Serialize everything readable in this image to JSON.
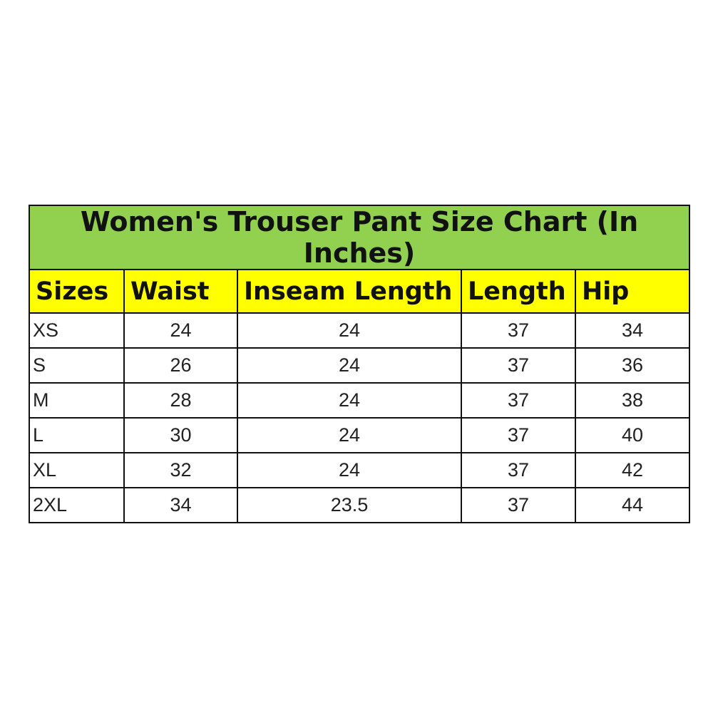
{
  "title": "Women's Trouser Pant Size Chart (In Inches)",
  "colors": {
    "title_bg": "#92d050",
    "header_bg": "#ffff00",
    "border": "#111111"
  },
  "headers": [
    "Sizes",
    "Waist",
    "Inseam Length",
    "Length",
    "Hip"
  ],
  "rows": [
    [
      "XS",
      "24",
      "24",
      "37",
      "34"
    ],
    [
      "S",
      "26",
      "24",
      "37",
      "36"
    ],
    [
      "M",
      "28",
      "24",
      "37",
      "38"
    ],
    [
      "L",
      "30",
      "24",
      "37",
      "40"
    ],
    [
      "XL",
      "32",
      "24",
      "37",
      "42"
    ],
    [
      "2XL",
      "34",
      "23.5",
      "37",
      "44"
    ]
  ]
}
